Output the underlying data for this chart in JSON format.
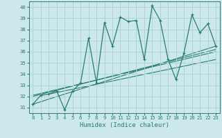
{
  "xlabel": "Humidex (Indice chaleur)",
  "ylabel": "",
  "xlim": [
    -0.5,
    23.5
  ],
  "ylim": [
    30.5,
    40.5
  ],
  "yticks": [
    31,
    32,
    33,
    34,
    35,
    36,
    37,
    38,
    39,
    40
  ],
  "xticks": [
    0,
    1,
    2,
    3,
    4,
    5,
    6,
    7,
    8,
    9,
    10,
    11,
    12,
    13,
    14,
    15,
    16,
    17,
    18,
    19,
    20,
    21,
    22,
    23
  ],
  "bg_color": "#cce8ec",
  "grid_color": "#aad4d8",
  "line_color": "#2a7d6e",
  "main_line": [
    [
      0,
      31.3
    ],
    [
      1,
      32.1
    ],
    [
      2,
      32.2
    ],
    [
      3,
      32.5
    ],
    [
      4,
      30.8
    ],
    [
      5,
      32.5
    ],
    [
      6,
      33.2
    ],
    [
      7,
      37.2
    ],
    [
      8,
      33.2
    ],
    [
      9,
      38.6
    ],
    [
      10,
      36.5
    ],
    [
      11,
      39.1
    ],
    [
      12,
      38.7
    ],
    [
      13,
      38.8
    ],
    [
      14,
      35.3
    ],
    [
      15,
      40.1
    ],
    [
      16,
      38.8
    ],
    [
      17,
      35.3
    ],
    [
      18,
      33.5
    ],
    [
      19,
      35.9
    ],
    [
      20,
      39.3
    ],
    [
      21,
      37.7
    ],
    [
      22,
      38.5
    ],
    [
      23,
      36.5
    ]
  ],
  "trend_lines": [
    [
      [
        0,
        31.3
      ],
      [
        23,
        36.5
      ]
    ],
    [
      [
        0,
        32.0
      ],
      [
        23,
        36.2
      ]
    ],
    [
      [
        0,
        32.1
      ],
      [
        23,
        36.0
      ]
    ],
    [
      [
        2,
        32.2
      ],
      [
        23,
        35.3
      ]
    ]
  ]
}
